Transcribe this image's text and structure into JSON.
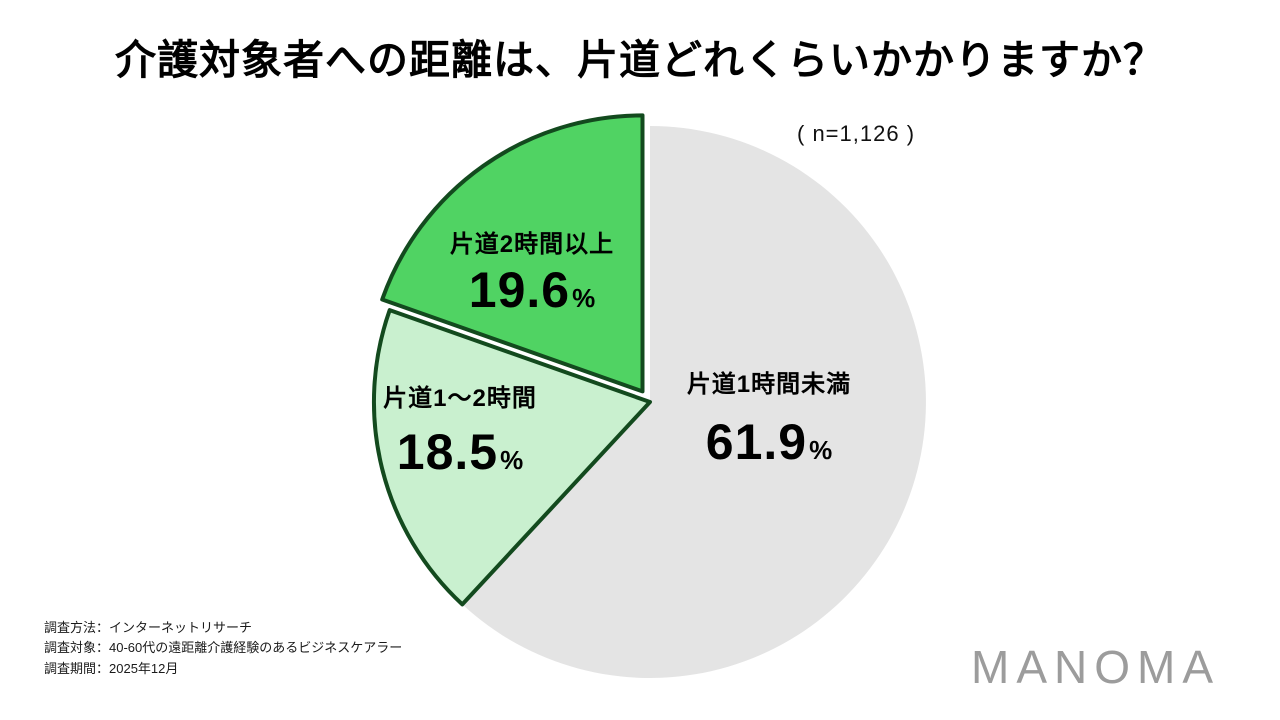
{
  "title": "介護対象者への距離は、片道どれくらいかかりますか？",
  "sample_size": "( n=1,126 )",
  "chart_data": {
    "type": "pie",
    "title": "介護対象者への距離は、片道どれくらいかかりますか？",
    "sample_size_label": "n=1,126",
    "start_angle_deg": 0,
    "direction": "clockwise",
    "legend_position": "on-slice",
    "outline_color": "#134a1e",
    "background": "#ffffff",
    "slices": [
      {
        "label": "片道1時間未満",
        "value": 61.9,
        "unit": "%",
        "color": "#e4e4e4",
        "outlined": false,
        "exploded": false
      },
      {
        "label": "片道1〜2時間",
        "value": 18.5,
        "unit": "%",
        "color": "#c9f0cf",
        "outlined": true,
        "exploded": false
      },
      {
        "label": "片道2時間以上",
        "value": 19.6,
        "unit": "%",
        "color": "#50d363",
        "outlined": true,
        "exploded": true
      }
    ]
  },
  "footer": {
    "lines": [
      "調査方法：インターネットリサーチ",
      "調査対象：40-60代の遠距離介護経験のあるビジネスケアラー",
      "調査期間：2025年12月"
    ]
  },
  "logo_text": "MANOMA"
}
